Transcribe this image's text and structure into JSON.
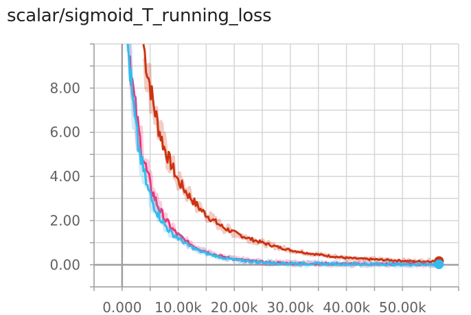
{
  "chart_data": {
    "type": "line",
    "title": "scalar/sigmoid_T_running_loss",
    "xlabel": "",
    "ylabel": "",
    "xlim": [
      -5000,
      60000
    ],
    "ylim": [
      -1.0,
      10.0
    ],
    "grid": true,
    "x_tick_labels": [
      "0.000",
      "10.00k",
      "20.00k",
      "30.00k",
      "40.00k",
      "50.00k"
    ],
    "x_tick_values": [
      0,
      10000,
      20000,
      30000,
      40000,
      50000
    ],
    "y_tick_labels": [
      "0.00",
      "2.00",
      "4.00",
      "6.00",
      "8.00"
    ],
    "y_tick_values": [
      0,
      2,
      4,
      6,
      8
    ],
    "series": [
      {
        "color": "#cc3311",
        "x": [
          3800,
          4500,
          5500,
          6500,
          7500,
          8500,
          10000,
          12000,
          14000,
          16000,
          18000,
          20000,
          22500,
          25000,
          27500,
          30000,
          32500,
          35000,
          37500,
          40000,
          42500,
          45000,
          47500,
          50000,
          52000,
          56500
        ],
        "values": [
          10.0,
          8.8,
          7.4,
          6.2,
          5.3,
          4.7,
          3.8,
          3.1,
          2.5,
          2.05,
          1.7,
          1.45,
          1.2,
          1.0,
          0.82,
          0.66,
          0.55,
          0.46,
          0.38,
          0.31,
          0.27,
          0.24,
          0.21,
          0.18,
          0.15,
          0.17
        ],
        "end_marker": true
      },
      {
        "color": "#ee3377",
        "x": [
          1200,
          1600,
          2000,
          2600,
          3200,
          4000,
          5000,
          6000,
          7000,
          8000,
          9000,
          10000,
          12000,
          14000,
          16000,
          18000,
          20000,
          22500,
          25000,
          27500,
          30000,
          35000,
          40000,
          45000,
          50000,
          56500
        ],
        "values": [
          10.0,
          8.9,
          7.8,
          6.6,
          5.6,
          4.6,
          3.6,
          2.9,
          2.35,
          1.95,
          1.6,
          1.35,
          0.95,
          0.68,
          0.5,
          0.36,
          0.26,
          0.18,
          0.12,
          0.09,
          0.07,
          0.05,
          0.04,
          0.03,
          0.03,
          0.03
        ]
      },
      {
        "color": "#33bbee",
        "x": [
          1000,
          1400,
          1800,
          2300,
          2900,
          3600,
          4500,
          5500,
          6500,
          7500,
          8500,
          10000,
          12000,
          14000,
          16000,
          18000,
          20000,
          22500,
          25000,
          27500,
          30000,
          35000,
          40000,
          45000,
          50000,
          56500
        ],
        "values": [
          10.0,
          8.8,
          7.6,
          6.5,
          5.4,
          4.5,
          3.5,
          2.8,
          2.25,
          1.85,
          1.5,
          1.2,
          0.85,
          0.6,
          0.44,
          0.32,
          0.23,
          0.16,
          0.11,
          0.08,
          0.06,
          0.04,
          0.03,
          0.03,
          0.02,
          0.02
        ],
        "end_marker": true
      }
    ]
  }
}
